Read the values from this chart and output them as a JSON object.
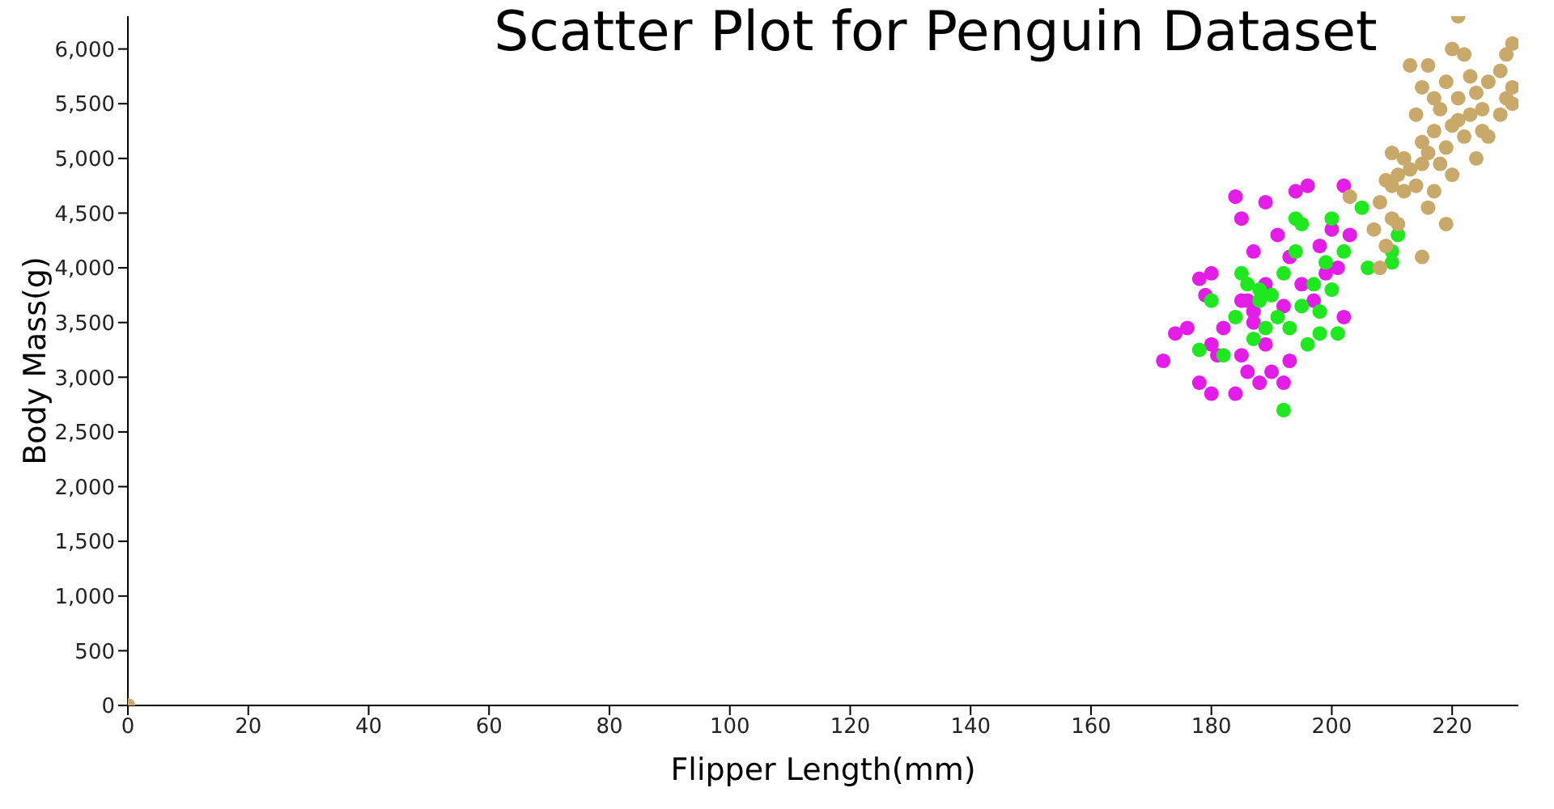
{
  "chart_data": {
    "type": "scatter",
    "title": "Scatter Plot for Penguin Dataset",
    "xlabel": "Flipper Length(mm)",
    "ylabel": "Body Mass(g)",
    "xlim": [
      0,
      231
    ],
    "ylim": [
      0,
      6300
    ],
    "xticks": [
      0,
      20,
      40,
      60,
      80,
      100,
      120,
      140,
      160,
      180,
      200,
      220
    ],
    "yticks": [
      {
        "value": 0,
        "label": "0"
      },
      {
        "value": 500,
        "label": "500"
      },
      {
        "value": 1000,
        "label": "1,000"
      },
      {
        "value": 1500,
        "label": "1,500"
      },
      {
        "value": 2000,
        "label": "2,000"
      },
      {
        "value": 2500,
        "label": "2,500"
      },
      {
        "value": 3000,
        "label": "3,000"
      },
      {
        "value": 3500,
        "label": "3,500"
      },
      {
        "value": 4000,
        "label": "4,000"
      },
      {
        "value": 4500,
        "label": "4,500"
      },
      {
        "value": 5000,
        "label": "5,000"
      },
      {
        "value": 5500,
        "label": "5,500"
      },
      {
        "value": 6000,
        "label": "6,000"
      }
    ],
    "grid": false,
    "marker": "circle",
    "series": [
      {
        "color": "#e31ce8",
        "x": [
          172,
          174,
          176,
          178,
          178,
          179,
          180,
          180,
          180,
          181,
          182,
          184,
          184,
          185,
          185,
          186,
          187,
          187,
          188,
          189,
          189,
          190,
          191,
          192,
          192,
          193,
          194,
          195,
          196,
          197,
          198,
          199,
          200,
          201,
          202,
          203,
          202,
          189,
          186,
          185,
          187,
          193
        ],
        "values": [
          3150,
          3400,
          3450,
          3900,
          2950,
          3750,
          3950,
          2850,
          3300,
          3200,
          3450,
          4650,
          2850,
          3700,
          4450,
          3050,
          3500,
          4150,
          2950,
          3850,
          4600,
          3050,
          4300,
          3650,
          2950,
          4100,
          4700,
          3850,
          4750,
          3700,
          4200,
          3950,
          4350,
          4000,
          4750,
          4300,
          3550,
          3300,
          3700,
          3200,
          3600,
          3150
        ]
      },
      {
        "color": "#1ee81e",
        "x": [
          178,
          180,
          182,
          184,
          186,
          187,
          188,
          189,
          190,
          191,
          192,
          192,
          193,
          194,
          195,
          195,
          196,
          197,
          198,
          198,
          199,
          200,
          200,
          201,
          202,
          205,
          206,
          210,
          211,
          210,
          185,
          194,
          188
        ],
        "values": [
          3250,
          3700,
          3200,
          3550,
          3850,
          3350,
          3700,
          3450,
          3750,
          3550,
          2700,
          3950,
          3450,
          4150,
          3650,
          4400,
          3300,
          3850,
          3600,
          3400,
          4050,
          3800,
          4450,
          3400,
          4150,
          4550,
          4000,
          4050,
          4300,
          4150,
          3950,
          4450,
          3800
        ]
      },
      {
        "color": "#c9a96a",
        "x": [
          0,
          203,
          207,
          208,
          208,
          209,
          209,
          210,
          210,
          210,
          211,
          211,
          212,
          212,
          213,
          213,
          214,
          214,
          215,
          215,
          215,
          216,
          216,
          216,
          217,
          217,
          217,
          218,
          218,
          219,
          219,
          220,
          220,
          220,
          221,
          221,
          222,
          222,
          223,
          223,
          224,
          224,
          225,
          225,
          226,
          226,
          228,
          228,
          229,
          229,
          230,
          230,
          230,
          215,
          221,
          219
        ],
        "values": [
          0,
          4650,
          4350,
          4000,
          4600,
          4200,
          4800,
          4450,
          4750,
          5050,
          4400,
          4850,
          4700,
          5000,
          4900,
          5850,
          5400,
          4750,
          5150,
          4100,
          5650,
          4550,
          5050,
          5850,
          4700,
          5250,
          5550,
          4950,
          5450,
          5100,
          5700,
          6000,
          5300,
          4850,
          6300,
          5550,
          5200,
          5950,
          5400,
          5750,
          5600,
          5000,
          5450,
          5250,
          5700,
          5200,
          5800,
          5400,
          5550,
          5950,
          5650,
          5500,
          6050,
          4950,
          5350,
          4400
        ]
      }
    ]
  }
}
